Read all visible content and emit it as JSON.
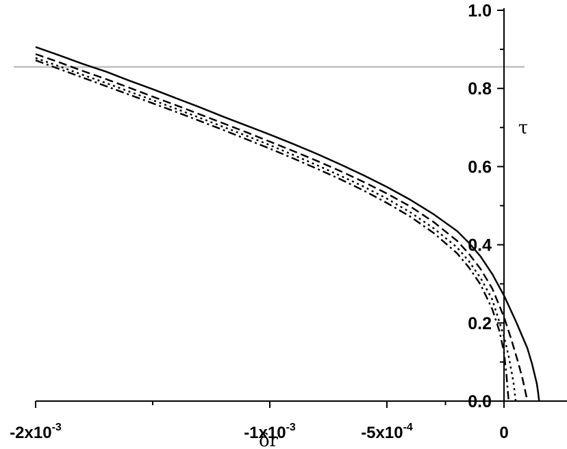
{
  "chart_data": {
    "type": "line",
    "xlabel": "δr",
    "ylabel": "τ",
    "xlim": [
      -0.0021,
      0.0002
    ],
    "ylim": [
      0.0,
      1.0
    ],
    "x_ticks": [
      {
        "value": -0.002,
        "label": "-2x10",
        "exp": "-3"
      },
      {
        "value": -0.001,
        "label": "-1x10",
        "exp": "-3"
      },
      {
        "value": -0.0005,
        "label": "-5x10",
        "exp": "-4"
      },
      {
        "value": 0.0,
        "label": "0",
        "exp": ""
      }
    ],
    "x_minor_ticks": [
      -0.0015,
      -0.00025
    ],
    "y_ticks": [
      {
        "value": 0.0,
        "label": "0.0"
      },
      {
        "value": 0.2,
        "label": "0.2"
      },
      {
        "value": 0.4,
        "label": "0.4"
      },
      {
        "value": 0.6,
        "label": "0.6"
      },
      {
        "value": 0.8,
        "label": "0.8"
      },
      {
        "value": 1.0,
        "label": "1.0"
      }
    ],
    "y_minor_ticks": [
      0.1,
      0.3,
      0.5,
      0.7,
      0.9
    ],
    "reference_line": {
      "y": 0.855,
      "color": "#bfbfbf"
    },
    "series": [
      {
        "style": "solid",
        "color": "#000000",
        "x": [
          -0.002,
          -0.0019,
          -0.0018,
          -0.0017,
          -0.0016,
          -0.0015,
          -0.0014,
          -0.0013,
          -0.0012,
          -0.0011,
          -0.001,
          -0.0009,
          -0.0008,
          -0.0007,
          -0.0006,
          -0.0005,
          -0.0004,
          -0.0003,
          -0.0002,
          -0.00015,
          -0.0001,
          -5e-05,
          0.0,
          5e-05,
          0.0001,
          0.00012,
          0.00014,
          0.000145,
          0.00015
        ],
        "y": [
          0.906,
          0.885,
          0.863,
          0.843,
          0.82,
          0.798,
          0.775,
          0.752,
          0.728,
          0.705,
          0.682,
          0.658,
          0.633,
          0.606,
          0.578,
          0.548,
          0.515,
          0.478,
          0.435,
          0.405,
          0.37,
          0.325,
          0.27,
          0.205,
          0.135,
          0.095,
          0.045,
          0.025,
          0.0
        ]
      },
      {
        "style": "dashed",
        "color": "#000000",
        "x": [
          -0.002,
          -0.0019,
          -0.0018,
          -0.0017,
          -0.0016,
          -0.0015,
          -0.0014,
          -0.0013,
          -0.0012,
          -0.0011,
          -0.001,
          -0.0009,
          -0.0008,
          -0.0007,
          -0.0006,
          -0.0005,
          -0.0004,
          -0.0003,
          -0.0002,
          -0.00015,
          -0.0001,
          -5e-05,
          0.0,
          3e-05,
          6e-05,
          8e-05,
          0.0001
        ],
        "y": [
          0.888,
          0.867,
          0.845,
          0.824,
          0.802,
          0.779,
          0.757,
          0.734,
          0.711,
          0.688,
          0.664,
          0.64,
          0.615,
          0.589,
          0.561,
          0.531,
          0.498,
          0.458,
          0.41,
          0.377,
          0.338,
          0.288,
          0.215,
          0.16,
          0.1,
          0.055,
          0.0
        ]
      },
      {
        "style": "dotted",
        "color": "#000000",
        "x": [
          -0.002,
          -0.0019,
          -0.0018,
          -0.0017,
          -0.0016,
          -0.0015,
          -0.0014,
          -0.0013,
          -0.0012,
          -0.0011,
          -0.001,
          -0.0009,
          -0.0008,
          -0.0007,
          -0.0006,
          -0.0005,
          -0.0004,
          -0.0003,
          -0.0002,
          -0.00015,
          -0.0001,
          -5e-05,
          0.0,
          2e-05,
          4e-05,
          5e-05
        ],
        "y": [
          0.878,
          0.857,
          0.835,
          0.814,
          0.792,
          0.77,
          0.748,
          0.725,
          0.702,
          0.679,
          0.655,
          0.63,
          0.604,
          0.577,
          0.549,
          0.518,
          0.483,
          0.442,
          0.393,
          0.358,
          0.315,
          0.26,
          0.165,
          0.115,
          0.05,
          0.0
        ]
      },
      {
        "style": "dash-dot",
        "color": "#000000",
        "x": [
          -0.002,
          -0.0019,
          -0.0018,
          -0.0017,
          -0.0016,
          -0.0015,
          -0.0014,
          -0.0013,
          -0.0012,
          -0.0011,
          -0.001,
          -0.0009,
          -0.0008,
          -0.0007,
          -0.0006,
          -0.0005,
          -0.0004,
          -0.0003,
          -0.0002,
          -0.00015,
          -0.0001,
          -5e-05,
          -2e-05,
          0.0,
          1e-05,
          2e-05
        ],
        "y": [
          0.872,
          0.85,
          0.828,
          0.806,
          0.784,
          0.762,
          0.74,
          0.717,
          0.694,
          0.67,
          0.646,
          0.621,
          0.595,
          0.568,
          0.539,
          0.507,
          0.472,
          0.43,
          0.378,
          0.342,
          0.298,
          0.235,
          0.18,
          0.125,
          0.07,
          0.0
        ]
      }
    ]
  }
}
